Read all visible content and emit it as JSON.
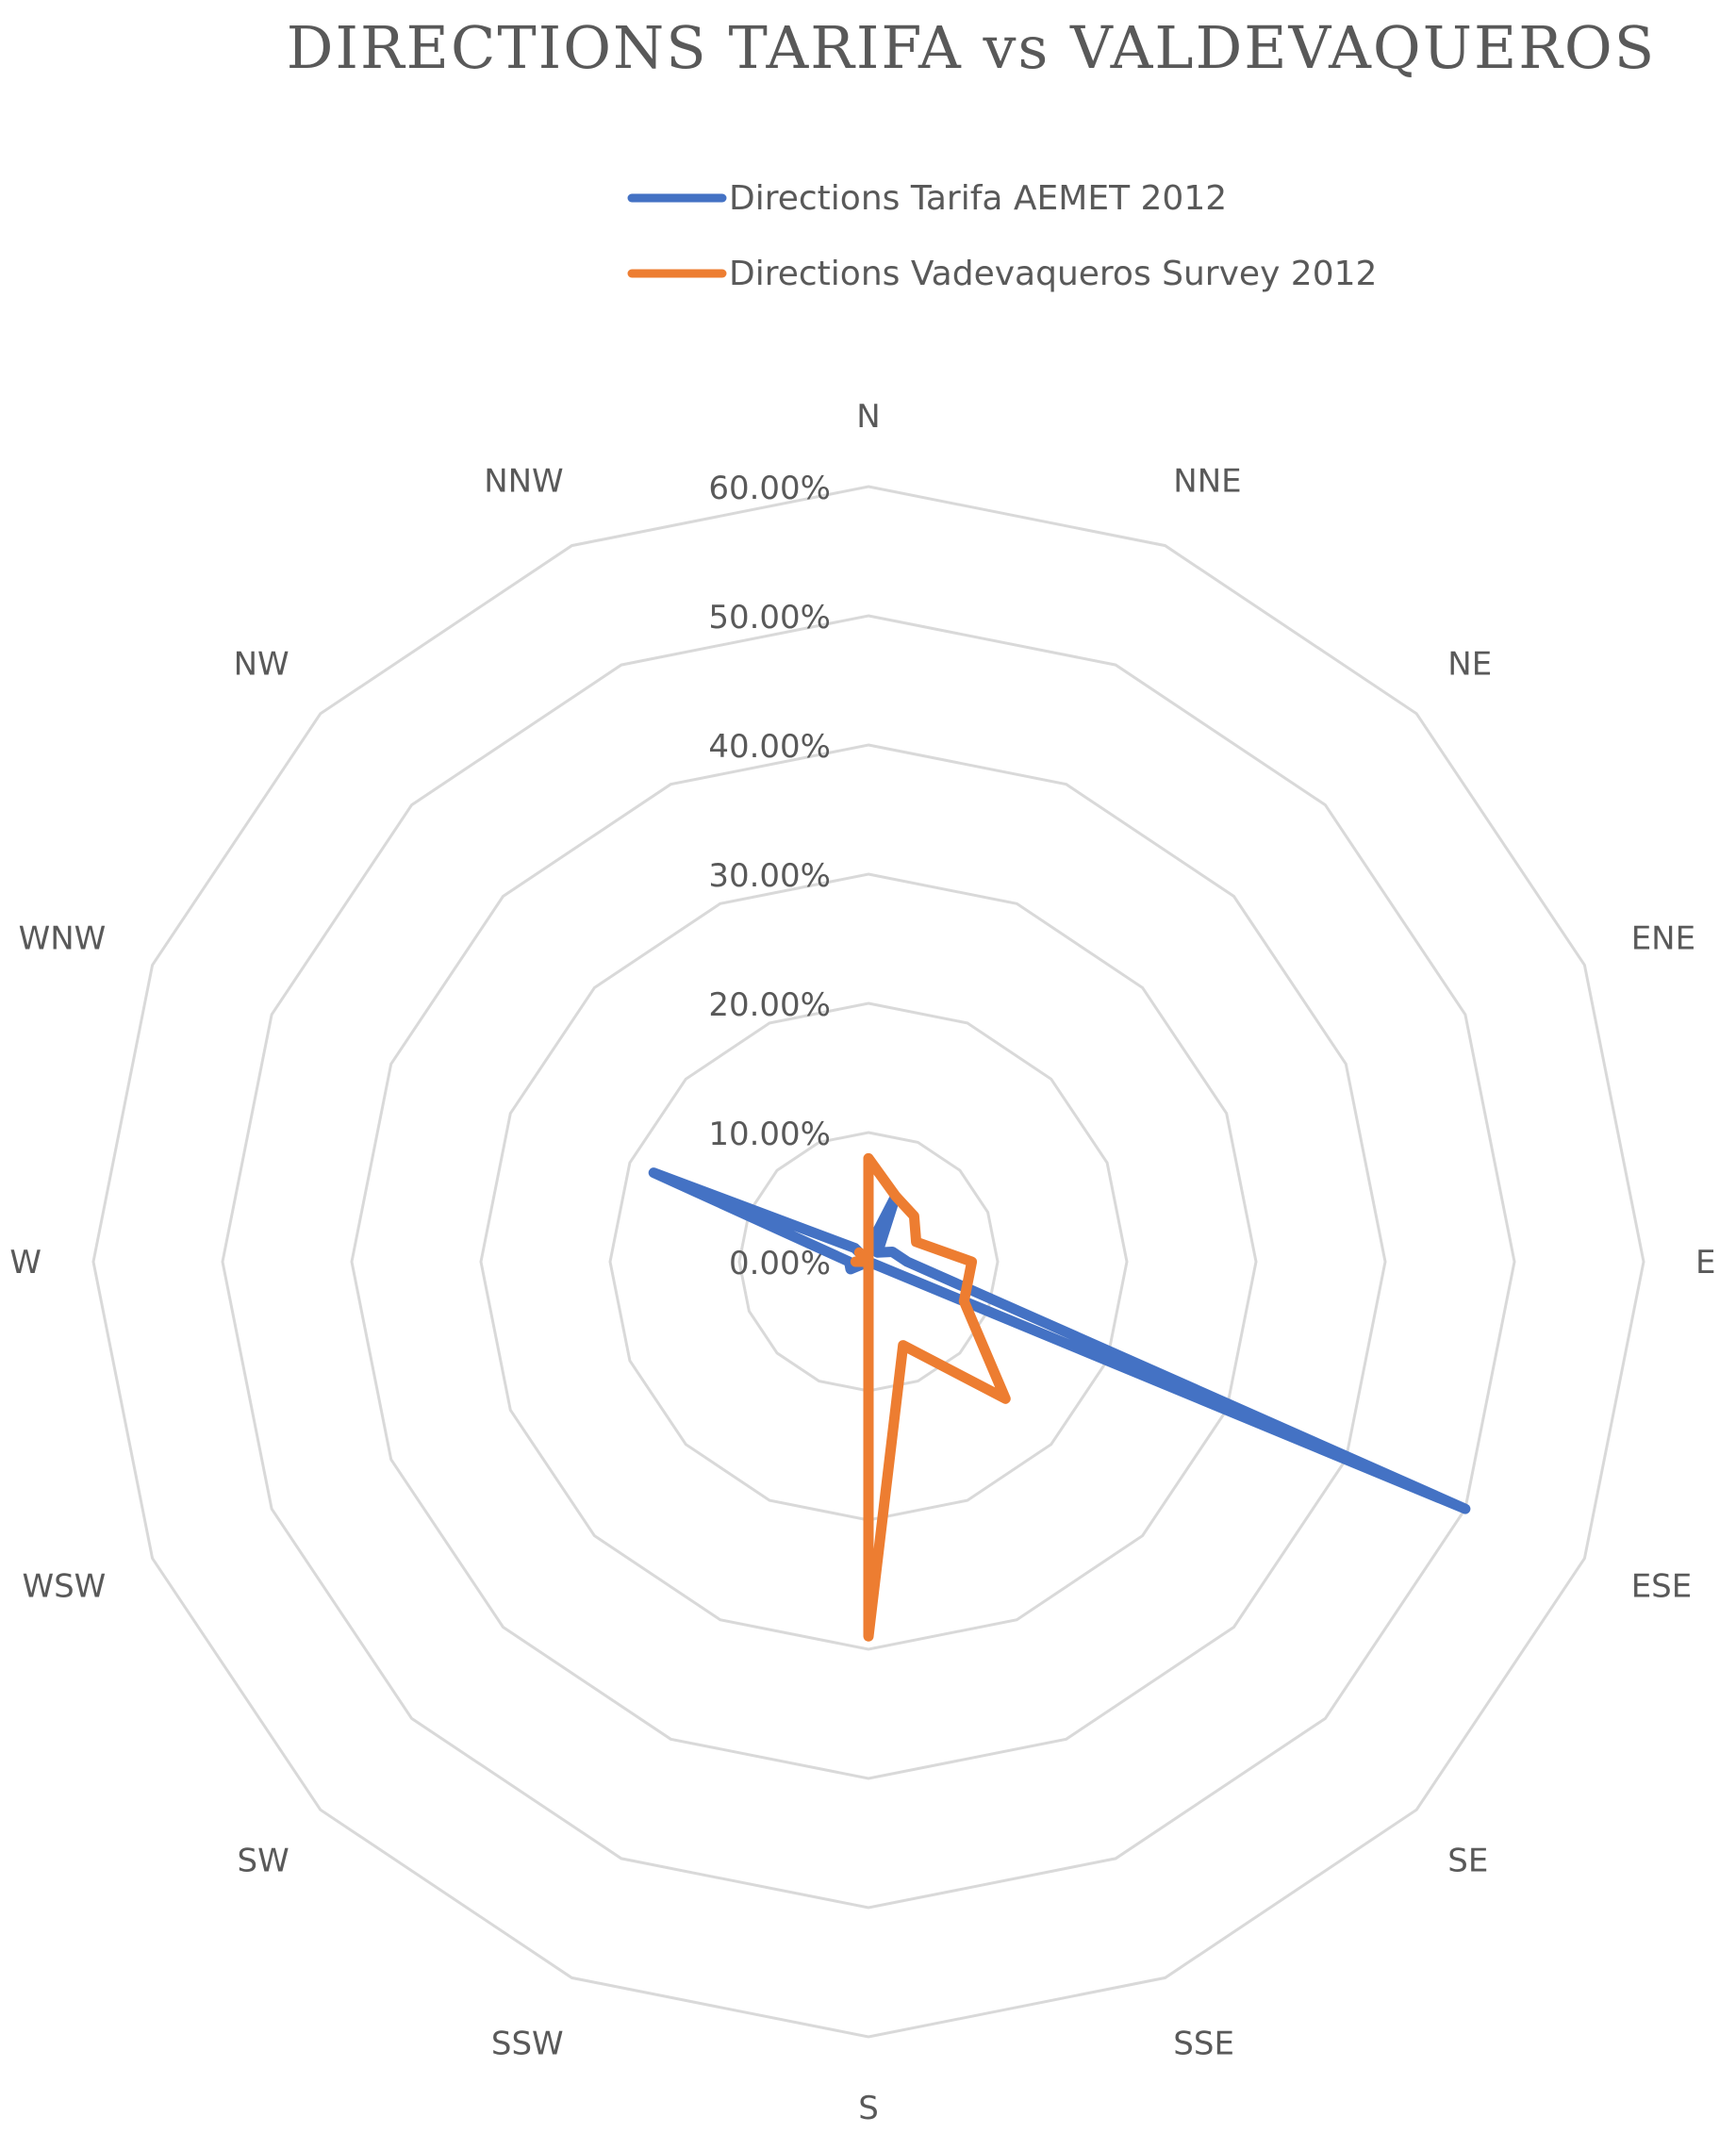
{
  "chart_data": {
    "type": "radar",
    "title": "DIRECTIONS TARIFA vs VALDEVAQUEROS",
    "categories": [
      "N",
      "NNE",
      "NE",
      "ENE",
      "E",
      "ESE",
      "SE",
      "SSE",
      "S",
      "SSW",
      "SW",
      "WSW",
      "W",
      "WNW",
      "NW",
      "NNW"
    ],
    "radial_range": [
      0,
      0.6
    ],
    "radial_ticks": [
      "0.00%",
      "10.00%",
      "20.00%",
      "30.00%",
      "40.00%",
      "50.00%",
      "60.00%"
    ],
    "radial_tick_values": [
      0,
      0.1,
      0.2,
      0.3,
      0.4,
      0.5,
      0.6
    ],
    "grid": true,
    "legend_position": "top",
    "series": [
      {
        "name": "Directions Tarifa AEMET 2012",
        "color": "#4472C4",
        "values": [
          0.01,
          0.055,
          0.01,
          0.02,
          0.03,
          0.5,
          0.0,
          0.0,
          0.0,
          0.0,
          0.0,
          0.015,
          0.015,
          0.18,
          0.015,
          0.0
        ]
      },
      {
        "name": "Directions Vadevaqueros Survey 2012",
        "color": "#ED7D31",
        "values": [
          0.08,
          0.055,
          0.05,
          0.04,
          0.08,
          0.08,
          0.15,
          0.07,
          0.29,
          0.0,
          0.0,
          0.0,
          0.01,
          0.0,
          0.01,
          0.0
        ]
      }
    ]
  }
}
